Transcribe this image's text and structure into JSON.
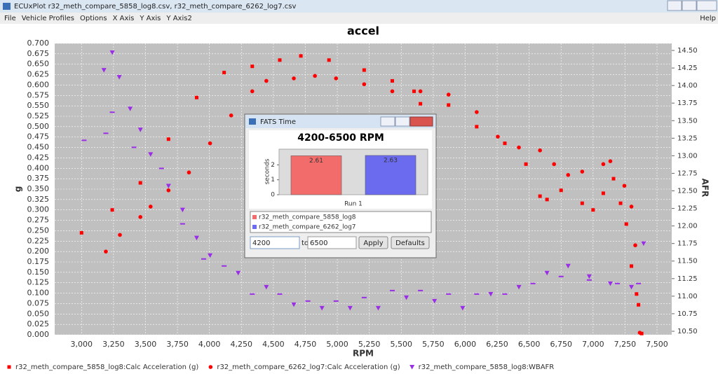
{
  "window": {
    "title": "ECUxPlot r32_meth_compare_5858_log8.csv, r32_meth_compare_6262_log7.csv",
    "menu": [
      "File",
      "Vehicle Profiles",
      "Options",
      "X Axis",
      "Y Axis",
      "Y Axis2"
    ],
    "help": "Help"
  },
  "chart_data": [
    {
      "type": "scatter",
      "title": "accel",
      "x_label": "RPM",
      "y_label": "g",
      "y2_label": "AFR",
      "xlim": [
        2790,
        7615
      ],
      "ylim": [
        0,
        0.7
      ],
      "y2lim": [
        10.45,
        14.6
      ],
      "grid": true,
      "xticks": [
        {
          "value": 3000,
          "label": "3,000"
        },
        {
          "value": 3250,
          "label": "3,250"
        },
        {
          "value": 3500,
          "label": "3,500"
        },
        {
          "value": 3750,
          "label": "3,750"
        },
        {
          "value": 4000,
          "label": "4,000"
        },
        {
          "value": 4250,
          "label": "4,250"
        },
        {
          "value": 4500,
          "label": "4,500"
        },
        {
          "value": 4750,
          "label": "4,750"
        },
        {
          "value": 5000,
          "label": "5,000"
        },
        {
          "value": 5250,
          "label": "5,250"
        },
        {
          "value": 5500,
          "label": "5,500"
        },
        {
          "value": 5750,
          "label": "5,750"
        },
        {
          "value": 6000,
          "label": "6,000"
        },
        {
          "value": 6250,
          "label": "6,250"
        },
        {
          "value": 6500,
          "label": "6,500"
        },
        {
          "value": 6750,
          "label": "6,750"
        },
        {
          "value": 7000,
          "label": "7,000"
        },
        {
          "value": 7250,
          "label": "7,250"
        },
        {
          "value": 7500,
          "label": "7,500"
        }
      ],
      "yticks": [
        {
          "value": 0,
          "label": "0.000"
        },
        {
          "value": 0.025,
          "label": "0.025"
        },
        {
          "value": 0.05,
          "label": "0.050"
        },
        {
          "value": 0.075,
          "label": "0.075"
        },
        {
          "value": 0.1,
          "label": "0.100"
        },
        {
          "value": 0.125,
          "label": "0.125"
        },
        {
          "value": 0.15,
          "label": "0.150"
        },
        {
          "value": 0.175,
          "label": "0.175"
        },
        {
          "value": 0.2,
          "label": "0.200"
        },
        {
          "value": 0.225,
          "label": "0.225"
        },
        {
          "value": 0.25,
          "label": "0.250"
        },
        {
          "value": 0.275,
          "label": "0.275"
        },
        {
          "value": 0.3,
          "label": "0.300"
        },
        {
          "value": 0.325,
          "label": "0.325"
        },
        {
          "value": 0.35,
          "label": "0.350"
        },
        {
          "value": 0.375,
          "label": "0.375"
        },
        {
          "value": 0.4,
          "label": "0.400"
        },
        {
          "value": 0.425,
          "label": "0.425"
        },
        {
          "value": 0.45,
          "label": "0.450"
        },
        {
          "value": 0.475,
          "label": "0.475"
        },
        {
          "value": 0.5,
          "label": "0.500"
        },
        {
          "value": 0.525,
          "label": "0.525"
        },
        {
          "value": 0.55,
          "label": "0.550"
        },
        {
          "value": 0.575,
          "label": "0.575"
        },
        {
          "value": 0.6,
          "label": "0.600"
        },
        {
          "value": 0.625,
          "label": "0.625"
        },
        {
          "value": 0.65,
          "label": "0.650"
        },
        {
          "value": 0.675,
          "label": "0.675"
        },
        {
          "value": 0.7,
          "label": "0.700"
        }
      ],
      "y2ticks": [
        {
          "value": 10.5,
          "label": "10.50"
        },
        {
          "value": 10.75,
          "label": "10.75"
        },
        {
          "value": 11,
          "label": "11.00"
        },
        {
          "value": 11.25,
          "label": "11.25"
        },
        {
          "value": 11.5,
          "label": "11.50"
        },
        {
          "value": 11.75,
          "label": "11.75"
        },
        {
          "value": 12,
          "label": "12.00"
        },
        {
          "value": 12.25,
          "label": "12.25"
        },
        {
          "value": 12.5,
          "label": "12.50"
        },
        {
          "value": 12.75,
          "label": "12.75"
        },
        {
          "value": 13,
          "label": "13.00"
        },
        {
          "value": 13.25,
          "label": "13.25"
        },
        {
          "value": 13.5,
          "label": "13.50"
        },
        {
          "value": 13.75,
          "label": "13.75"
        },
        {
          "value": 14,
          "label": "14.00"
        },
        {
          "value": 14.25,
          "label": "14.25"
        },
        {
          "value": 14.5,
          "label": "14.50"
        }
      ],
      "series": [
        {
          "name": "r32_meth_compare_5858_log8:Calc Acceleration (g)",
          "color": "#ff0000",
          "marker": "square",
          "x": [
            3000,
            3240,
            3460,
            3680,
            3900,
            4115,
            4335,
            4550,
            4715,
            4935,
            5210,
            5430,
            5600,
            5650,
            5870,
            6090,
            6310,
            6475,
            6585,
            6640,
            6750,
            6915,
            7000,
            7080,
            7160,
            7215,
            7260,
            7300,
            7340,
            7355,
            7380
          ],
          "values": [
            0.245,
            0.3,
            0.365,
            0.47,
            0.57,
            0.63,
            0.645,
            0.66,
            0.67,
            0.66,
            0.636,
            0.61,
            0.585,
            0.555,
            0.552,
            0.5,
            0.46,
            0.41,
            0.333,
            0.325,
            0.347,
            0.316,
            0.3,
            0.34,
            0.375,
            0.316,
            0.266,
            0.165,
            0.098,
            0.072,
            0.003
          ]
        },
        {
          "name": "r32_meth_compare_6262_log7:Calc Acceleration (g)",
          "color": "#ff0000",
          "marker": "circle",
          "x": [
            3190,
            3300,
            3460,
            3540,
            3680,
            3840,
            4005,
            4170,
            4335,
            4445,
            4660,
            4825,
            4990,
            5210,
            5430,
            5650,
            5870,
            6090,
            6255,
            6420,
            6585,
            6695,
            6805,
            6915,
            7080,
            7135,
            7245,
            7300,
            7330,
            7365
          ],
          "values": [
            0.2,
            0.24,
            0.283,
            0.308,
            0.347,
            0.39,
            0.46,
            0.527,
            0.585,
            0.61,
            0.616,
            0.622,
            0.616,
            0.602,
            0.585,
            0.585,
            0.577,
            0.535,
            0.476,
            0.45,
            0.443,
            0.41,
            0.384,
            0.392,
            0.41,
            0.417,
            0.358,
            0.308,
            0.215,
            0.005
          ]
        },
        {
          "name": "r32_meth_compare_5858_log8:WBAFR",
          "color": "#9a2ee6",
          "marker": "triangle",
          "axis": "y2",
          "x": [
            3175,
            3240,
            3295,
            3380,
            3460,
            3540,
            3680,
            3790,
            3900,
            4005,
            4225,
            4445,
            4660,
            4880,
            5100,
            5320,
            5540,
            5760,
            5980,
            6200,
            6420,
            6640,
            6805,
            6970,
            7135,
            7300,
            7395
          ],
          "values": [
            14.22,
            14.47,
            14.12,
            13.67,
            13.37,
            13.02,
            12.57,
            12.23,
            11.83,
            11.58,
            11.33,
            11.13,
            10.88,
            10.83,
            10.83,
            10.83,
            10.98,
            10.93,
            10.83,
            11.03,
            11.13,
            11.33,
            11.43,
            11.28,
            11.18,
            11.13,
            11.75
          ]
        },
        {
          "color": "#9a2ee6",
          "marker": "dash",
          "axis": "y2",
          "x": [
            3020,
            3190,
            3240,
            3410,
            3625,
            3790,
            3955,
            4115,
            4335,
            4550,
            4770,
            4990,
            5210,
            5430,
            5650,
            5870,
            6090,
            6310,
            6530,
            6750,
            6970,
            7190,
            7355
          ],
          "values": [
            13.22,
            13.32,
            13.62,
            13.12,
            12.82,
            12.03,
            11.53,
            11.43,
            11.03,
            11.03,
            10.93,
            10.93,
            10.98,
            11.08,
            11.08,
            11.03,
            11.03,
            11.03,
            11.18,
            11.28,
            11.23,
            11.18,
            11.18
          ]
        }
      ]
    },
    {
      "type": "bar",
      "title": "4200-6500 RPM",
      "y_label": "seconds",
      "categories": [
        "Run 1"
      ],
      "ylim": [
        0,
        3.05
      ],
      "yticks": [
        0,
        1,
        2
      ],
      "series": [
        {
          "name": "r32_meth_compare_5858_log8",
          "color": "#f26c6c",
          "values": [
            2.61
          ]
        },
        {
          "name": "r32_meth_compare_6262_log7",
          "color": "#6b6bf0",
          "values": [
            2.63
          ]
        }
      ]
    }
  ],
  "dialog": {
    "title": "FATS Time",
    "from": "4200",
    "to_label": "to",
    "to": "6500",
    "buttons": [
      "Apply",
      "Defaults"
    ]
  }
}
